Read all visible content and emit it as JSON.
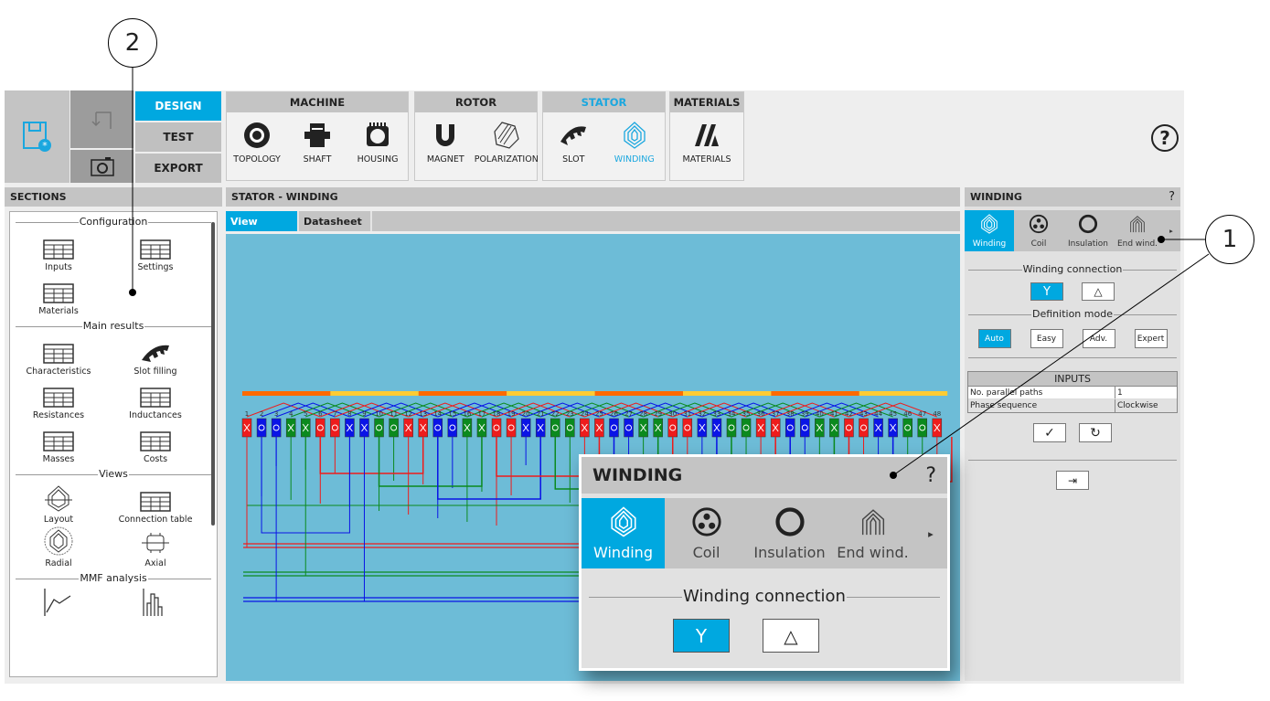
{
  "callouts": [
    "2",
    "1"
  ],
  "modes": {
    "design": "DESIGN",
    "test": "TEST",
    "export": "EXPORT"
  },
  "groups": {
    "machine": {
      "title": "MACHINE",
      "items": [
        "TOPOLOGY",
        "SHAFT",
        "HOUSING"
      ]
    },
    "rotor": {
      "title": "ROTOR",
      "items": [
        "MAGNET",
        "POLARIZATION"
      ]
    },
    "stator": {
      "title": "STATOR",
      "items": [
        "SLOT",
        "WINDING"
      ]
    },
    "materials": {
      "title": "MATERIALS",
      "items": [
        "MATERIALS"
      ]
    }
  },
  "help": "?",
  "sections": {
    "title": "SECTIONS",
    "groups": [
      {
        "title": "Configuration",
        "items": [
          "Inputs",
          "Settings",
          "Materials"
        ]
      },
      {
        "title": "Main results",
        "items": [
          "Characteristics",
          "Slot filling",
          "Resistances",
          "Inductances",
          "Masses",
          "Costs"
        ]
      },
      {
        "title": "Views",
        "items": [
          "Layout",
          "Connection table",
          "Radial",
          "Axial"
        ]
      },
      {
        "title": "MMF analysis",
        "items": [
          "",
          ""
        ]
      }
    ]
  },
  "center": {
    "title": "STATOR - WINDING",
    "tabs": [
      "View",
      "Datasheet"
    ]
  },
  "diagram": {
    "colors": {
      "R": "#ee1c1c",
      "B": "#0a14e6",
      "G": "#0b8a1e",
      "bar1": "#ff6a00",
      "bar2": "#ffcc33"
    },
    "slots": [
      "RX",
      "BO",
      "BO",
      "GX",
      "GX",
      "RO",
      "RO",
      "BX",
      "BX",
      "GO",
      "GO",
      "RX",
      "RX",
      "BO",
      "BO",
      "GX",
      "GX",
      "RO",
      "RO",
      "BX",
      "BX",
      "GO",
      "GO",
      "RX",
      "RX",
      "BO",
      "BO",
      "GX",
      "GX",
      "RO",
      "RO",
      "BX",
      "BX",
      "GO",
      "GO",
      "RX",
      "RX",
      "BO",
      "BO",
      "GX",
      "GX",
      "RO",
      "RO",
      "BX",
      "BX",
      "GO",
      "GO",
      "RX"
    ]
  },
  "right": {
    "title": "WINDING",
    "help": "?",
    "tabs": [
      "Winding",
      "Coil",
      "Insulation",
      "End wind."
    ],
    "connection_label": "Winding connection",
    "connection": [
      "Y",
      "△"
    ],
    "mode_label": "Definition mode",
    "modes": [
      "Auto",
      "Easy",
      "Adv.",
      "Expert"
    ],
    "inputs": {
      "title": "INPUTS",
      "rows": [
        [
          "No. parallel paths",
          "1"
        ],
        [
          "Phase sequence",
          "Clockwise"
        ]
      ]
    },
    "accent": "#00a8e0"
  }
}
